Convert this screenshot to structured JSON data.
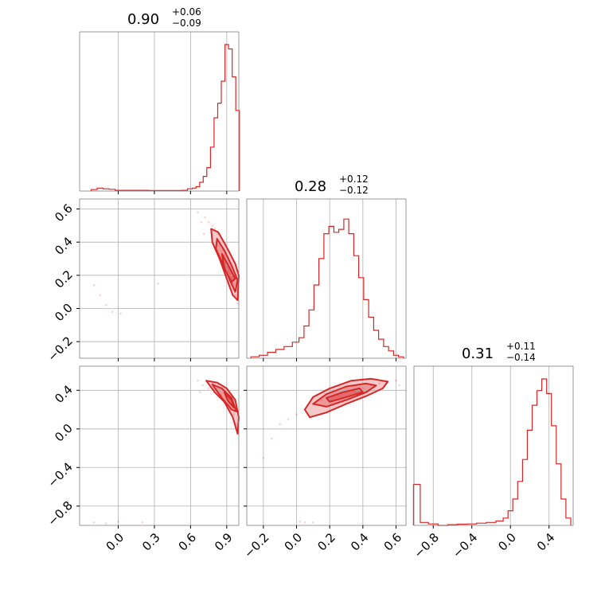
{
  "chart_data": {
    "type": "corner",
    "color": "#d62728",
    "parameters": [
      {
        "median": "0.90",
        "err_plus": "+0.06",
        "err_minus": "−0.09",
        "range": [
          -0.32,
          1.0
        ],
        "ticks": [
          {
            "v": 0.0,
            "label": "0.0"
          },
          {
            "v": 0.3,
            "label": "0.3"
          },
          {
            "v": 0.6,
            "label": "0.6"
          },
          {
            "v": 0.9,
            "label": "0.9"
          }
        ]
      },
      {
        "median": "0.28",
        "err_plus": "+0.12",
        "err_minus": "−0.12",
        "range": [
          -0.3,
          0.66
        ],
        "ticks": [
          {
            "v": -0.2,
            "label": "−0.2"
          },
          {
            "v": 0.0,
            "label": "0.0"
          },
          {
            "v": 0.2,
            "label": "0.2"
          },
          {
            "v": 0.4,
            "label": "0.4"
          },
          {
            "v": 0.6,
            "label": "0.6"
          }
        ]
      },
      {
        "median": "0.31",
        "err_plus": "+0.11",
        "err_minus": "−0.14",
        "range": [
          -1.0,
          0.65
        ],
        "ticks": [
          {
            "v": -0.8,
            "label": "−0.8"
          },
          {
            "v": -0.4,
            "label": "−0.4"
          },
          {
            "v": 0.0,
            "label": "0.0"
          },
          {
            "v": 0.4,
            "label": "0.4"
          }
        ]
      }
    ],
    "histograms": [
      {
        "bin_centers": [
          -0.2,
          -0.15,
          -0.1,
          -0.05,
          0.0,
          0.5,
          0.55,
          0.6,
          0.63,
          0.66,
          0.69,
          0.72,
          0.75,
          0.78,
          0.81,
          0.84,
          0.87,
          0.9,
          0.93,
          0.96,
          0.99
        ],
        "counts": [
          0.01,
          0.02,
          0.015,
          0.012,
          0.005,
          0.003,
          0.005,
          0.015,
          0.02,
          0.03,
          0.06,
          0.1,
          0.16,
          0.3,
          0.5,
          0.6,
          0.75,
          1.0,
          0.97,
          0.78,
          0.55
        ]
      },
      {
        "bin_centers": [
          -0.25,
          -0.2,
          -0.15,
          -0.1,
          -0.05,
          0.0,
          0.03,
          0.06,
          0.09,
          0.12,
          0.15,
          0.18,
          0.21,
          0.24,
          0.27,
          0.3,
          0.33,
          0.36,
          0.39,
          0.42,
          0.45,
          0.48,
          0.51,
          0.54,
          0.57,
          0.6,
          0.63
        ],
        "counts": [
          0.01,
          0.02,
          0.04,
          0.06,
          0.08,
          0.11,
          0.14,
          0.22,
          0.33,
          0.5,
          0.68,
          0.85,
          0.9,
          0.86,
          0.88,
          0.95,
          0.85,
          0.7,
          0.55,
          0.4,
          0.28,
          0.19,
          0.13,
          0.08,
          0.05,
          0.02,
          0.01
        ]
      },
      {
        "bin_centers": [
          -0.97,
          -0.9,
          -0.8,
          -0.7,
          -0.6,
          -0.5,
          -0.4,
          -0.3,
          -0.2,
          -0.1,
          -0.05,
          0.0,
          0.05,
          0.1,
          0.15,
          0.2,
          0.25,
          0.3,
          0.35,
          0.4,
          0.45,
          0.5,
          0.55,
          0.6
        ],
        "counts": [
          0.28,
          0.02,
          0.01,
          0.0,
          0.005,
          0.008,
          0.01,
          0.015,
          0.02,
          0.03,
          0.05,
          0.1,
          0.18,
          0.3,
          0.45,
          0.65,
          0.82,
          0.92,
          1.0,
          0.9,
          0.68,
          0.42,
          0.18,
          0.05
        ]
      }
    ],
    "scatter_panels": [
      {
        "row": 1,
        "col": 0,
        "points": [
          [
            0.72,
            0.55
          ],
          [
            0.75,
            0.52
          ],
          [
            0.8,
            0.48
          ],
          [
            0.82,
            0.42
          ],
          [
            0.85,
            0.38
          ],
          [
            0.88,
            0.32
          ],
          [
            0.9,
            0.25
          ],
          [
            0.92,
            0.2
          ],
          [
            0.95,
            0.15
          ],
          [
            0.97,
            0.08
          ],
          [
            0.99,
            0.03
          ],
          [
            0.78,
            0.5
          ],
          [
            0.83,
            0.45
          ],
          [
            0.87,
            0.35
          ],
          [
            0.93,
            0.18
          ],
          [
            -0.2,
            0.14
          ],
          [
            -0.15,
            0.08
          ],
          [
            -0.1,
            0.02
          ],
          [
            -0.05,
            -0.02
          ],
          [
            0.02,
            -0.03
          ],
          [
            0.33,
            0.15
          ],
          [
            0.66,
            0.58
          ],
          [
            0.69,
            0.52
          ],
          [
            0.71,
            0.45
          ],
          [
            0.96,
            0.28
          ]
        ],
        "contours": [
          [
            [
              0.77,
              0.48
            ],
            [
              0.83,
              0.46
            ],
            [
              0.9,
              0.37
            ],
            [
              0.97,
              0.27
            ],
            [
              1.0,
              0.2
            ],
            [
              0.99,
              0.05
            ],
            [
              0.95,
              0.08
            ],
            [
              0.9,
              0.18
            ],
            [
              0.84,
              0.3
            ],
            [
              0.78,
              0.4
            ]
          ],
          [
            [
              0.82,
              0.42
            ],
            [
              0.88,
              0.35
            ],
            [
              0.94,
              0.26
            ],
            [
              0.99,
              0.17
            ],
            [
              0.97,
              0.1
            ],
            [
              0.92,
              0.18
            ],
            [
              0.86,
              0.28
            ],
            [
              0.81,
              0.36
            ]
          ],
          [
            [
              0.86,
              0.33
            ],
            [
              0.92,
              0.25
            ],
            [
              0.97,
              0.18
            ],
            [
              0.94,
              0.16
            ],
            [
              0.88,
              0.24
            ]
          ]
        ]
      },
      {
        "row": 2,
        "col": 0,
        "points": [
          [
            0.7,
            0.45
          ],
          [
            0.75,
            0.42
          ],
          [
            0.8,
            0.4
          ],
          [
            0.85,
            0.35
          ],
          [
            0.9,
            0.3
          ],
          [
            0.93,
            0.2
          ],
          [
            0.96,
            0.15
          ],
          [
            0.98,
            0.05
          ],
          [
            0.99,
            -0.05
          ],
          [
            0.78,
            0.48
          ],
          [
            0.66,
            0.5
          ],
          [
            0.68,
            0.38
          ],
          [
            -0.2,
            -0.97
          ],
          [
            -0.1,
            -0.98
          ],
          [
            0.0,
            -0.96
          ],
          [
            0.2,
            -0.97
          ]
        ],
        "contours": [
          [
            [
              0.73,
              0.5
            ],
            [
              0.82,
              0.48
            ],
            [
              0.9,
              0.42
            ],
            [
              0.97,
              0.3
            ],
            [
              1.0,
              0.12
            ],
            [
              0.99,
              -0.05
            ],
            [
              0.95,
              0.12
            ],
            [
              0.88,
              0.28
            ],
            [
              0.8,
              0.38
            ]
          ],
          [
            [
              0.78,
              0.46
            ],
            [
              0.86,
              0.42
            ],
            [
              0.94,
              0.32
            ],
            [
              0.98,
              0.18
            ],
            [
              0.94,
              0.2
            ],
            [
              0.86,
              0.32
            ]
          ],
          [
            [
              0.88,
              0.38
            ],
            [
              0.94,
              0.3
            ],
            [
              0.96,
              0.22
            ],
            [
              0.91,
              0.29
            ]
          ]
        ]
      },
      {
        "row": 2,
        "col": 1,
        "points": [
          [
            0.05,
            0.2
          ],
          [
            0.1,
            0.25
          ],
          [
            0.15,
            0.3
          ],
          [
            0.2,
            0.3
          ],
          [
            0.25,
            0.35
          ],
          [
            0.3,
            0.38
          ],
          [
            0.35,
            0.4
          ],
          [
            0.4,
            0.42
          ],
          [
            0.45,
            0.45
          ],
          [
            0.5,
            0.47
          ],
          [
            0.55,
            0.48
          ],
          [
            0.0,
            0.15
          ],
          [
            -0.05,
            0.1
          ],
          [
            -0.1,
            0.05
          ],
          [
            -0.15,
            -0.1
          ],
          [
            -0.2,
            -0.3
          ],
          [
            0.6,
            0.5
          ],
          [
            0.62,
            0.45
          ],
          [
            0.02,
            -0.96
          ],
          [
            0.05,
            -0.97
          ],
          [
            0.1,
            -0.97
          ]
        ],
        "contours": [
          [
            [
              0.05,
              0.2
            ],
            [
              0.1,
              0.33
            ],
            [
              0.2,
              0.42
            ],
            [
              0.33,
              0.5
            ],
            [
              0.45,
              0.52
            ],
            [
              0.55,
              0.49
            ],
            [
              0.52,
              0.42
            ],
            [
              0.42,
              0.34
            ],
            [
              0.3,
              0.26
            ],
            [
              0.18,
              0.17
            ],
            [
              0.08,
              0.12
            ]
          ],
          [
            [
              0.1,
              0.26
            ],
            [
              0.18,
              0.36
            ],
            [
              0.3,
              0.44
            ],
            [
              0.42,
              0.47
            ],
            [
              0.48,
              0.45
            ],
            [
              0.42,
              0.38
            ],
            [
              0.3,
              0.3
            ],
            [
              0.18,
              0.23
            ]
          ],
          [
            [
              0.18,
              0.32
            ],
            [
              0.28,
              0.38
            ],
            [
              0.38,
              0.42
            ],
            [
              0.4,
              0.38
            ],
            [
              0.3,
              0.33
            ],
            [
              0.2,
              0.28
            ]
          ]
        ]
      }
    ]
  }
}
